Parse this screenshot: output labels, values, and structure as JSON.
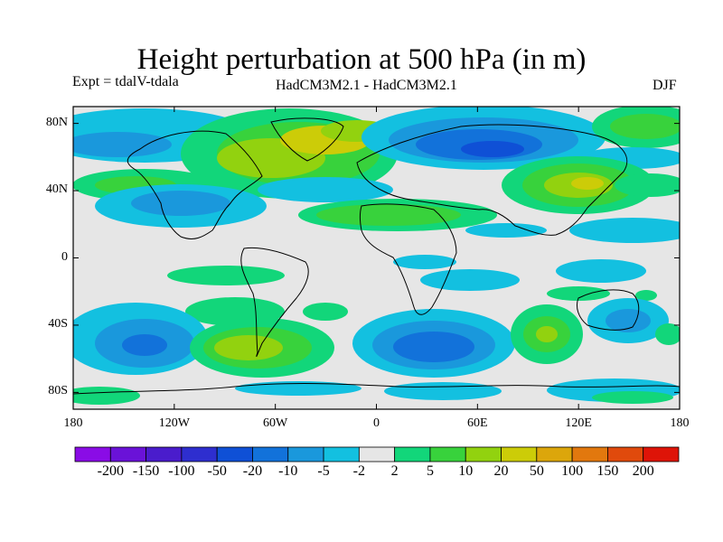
{
  "title": "Height perturbation at 500 hPa (in m)",
  "left_label": "Expt = tdalV-tdala",
  "center_label": "HadCM3M2.1 - HadCM3M2.1",
  "right_label": "DJF",
  "axes": {
    "lat_ticks": [
      "80N",
      "40N",
      "0",
      "40S",
      "80S"
    ],
    "lat_values": [
      80,
      40,
      0,
      -40,
      -80
    ],
    "lon_ticks": [
      "180",
      "120W",
      "60W",
      "0",
      "60E",
      "120E",
      "180"
    ],
    "lon_values": [
      -180,
      -120,
      -60,
      0,
      60,
      120,
      180
    ]
  },
  "colorbar": {
    "labels": [
      "-200",
      "-150",
      "-100",
      "-50",
      "-20",
      "-10",
      "-5",
      "-2",
      "2",
      "5",
      "10",
      "20",
      "50",
      "100",
      "150",
      "200"
    ],
    "colors": [
      "#8a0ce6",
      "#6a12d8",
      "#4a1ccc",
      "#2e2ecf",
      "#0f50d6",
      "#1272da",
      "#1a98dc",
      "#13c0e0",
      "#e6e6e6",
      "#12d67a",
      "#38d23c",
      "#92d20f",
      "#cccc08",
      "#dca60b",
      "#e2780e",
      "#e04a0c",
      "#de1408"
    ]
  },
  "field_colors": {
    "background": "#e6e6e6",
    "neg_light": "#13c0e0",
    "neg_mid": "#1a98dc",
    "neg_strong": "#1272da",
    "neg_deep": "#0f50d6",
    "pos_light": "#12d67a",
    "pos_mid": "#38d23c",
    "pos_strong": "#92d20f",
    "pos_peak": "#cccc08"
  }
}
